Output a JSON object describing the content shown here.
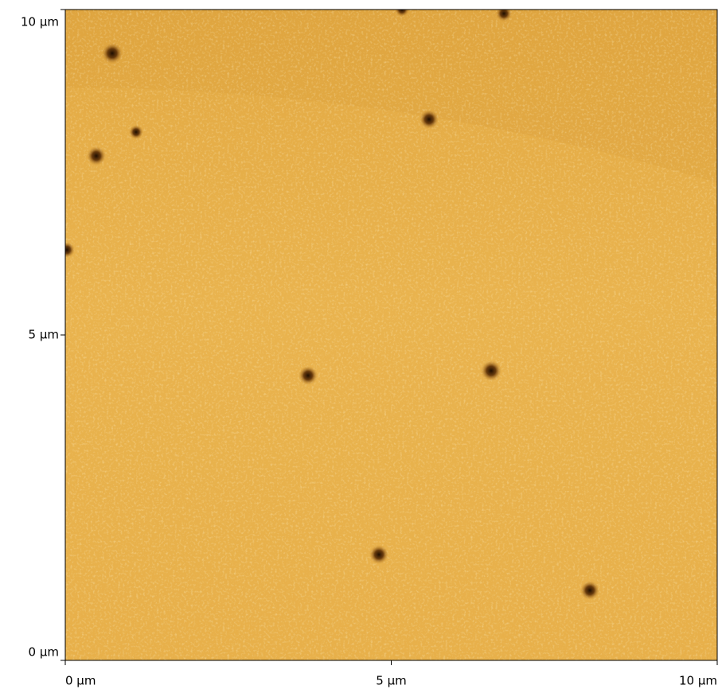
{
  "chart_data": {
    "type": "image",
    "xlim": [
      0,
      10
    ],
    "ylim": [
      0,
      10
    ],
    "xticks": [
      {
        "value": 0,
        "label": "0 µm"
      },
      {
        "value": 5,
        "label": "5 µm"
      },
      {
        "value": 10,
        "label": "10 µm"
      }
    ],
    "yticks": [
      {
        "value": 0,
        "label": "0 µm"
      },
      {
        "value": 5,
        "label": "5 µm"
      },
      {
        "value": 10,
        "label": "10 µm"
      }
    ],
    "color": "#e8b14b"
  }
}
